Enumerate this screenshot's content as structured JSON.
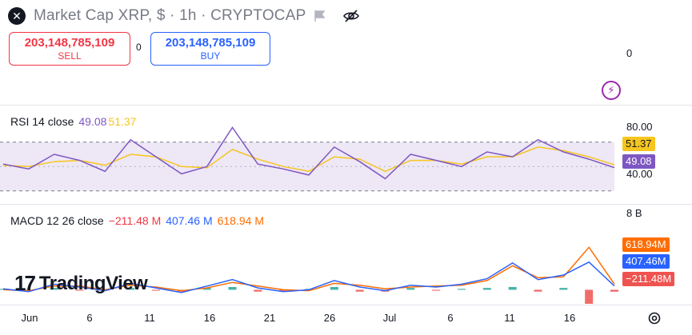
{
  "header": {
    "title": "Market Cap XRP, $ · 1h · CRYPTOCAP"
  },
  "trade": {
    "sell_price": "203,148,785,109",
    "sell_label": "SELL",
    "spread": "0",
    "buy_price": "203,148,785,109",
    "buy_label": "BUY"
  },
  "main_axis": {
    "zero": "0"
  },
  "rsi": {
    "name": "RSI 14 close",
    "value": "49.08",
    "ma_value": "51.37",
    "tick_high": "80.00",
    "tick_low": "40.00",
    "colors": {
      "rsi": "#7e57c2",
      "ma": "#f7c51e",
      "band": "#ede7f6"
    }
  },
  "macd": {
    "name": "MACD 12 26 close",
    "hist_value": "−211.48 M",
    "macd_value": "407.46 M",
    "signal_value": "618.94 M",
    "tick_top": "8 B",
    "tag_signal": "618.94M",
    "tag_macd": "407.46M",
    "tag_hist": "−211.48M",
    "colors": {
      "macd": "#2962ff",
      "signal": "#ff6d00",
      "hist_pos": "#26a69a",
      "hist_neg": "#ef5350"
    }
  },
  "xaxis": {
    "labels": [
      "Jun",
      "6",
      "11",
      "16",
      "21",
      "26",
      "Jul",
      "6",
      "11",
      "16"
    ]
  },
  "watermark": "TradingView",
  "chart_data": [
    {
      "type": "line",
      "title": "RSI 14 close",
      "ylim": [
        20,
        100
      ],
      "bands": [
        30,
        70
      ],
      "x": [
        "Jun 1",
        "Jun 3",
        "Jun 5",
        "Jun 7",
        "Jun 9",
        "Jun 11",
        "Jun 13",
        "Jun 15",
        "Jun 17",
        "Jun 19",
        "Jun 21",
        "Jun 23",
        "Jun 25",
        "Jun 27",
        "Jun 29",
        "Jul 1",
        "Jul 3",
        "Jul 5",
        "Jul 7",
        "Jul 9",
        "Jul 11",
        "Jul 13",
        "Jul 15",
        "Jul 17",
        "Jul 19"
      ],
      "series": [
        {
          "name": "RSI",
          "values": [
            52,
            48,
            60,
            55,
            46,
            72,
            58,
            44,
            50,
            82,
            52,
            48,
            43,
            66,
            54,
            40,
            60,
            55,
            50,
            62,
            58,
            72,
            62,
            56,
            49.08
          ]
        },
        {
          "name": "MA",
          "values": [
            51,
            50,
            54,
            55,
            51,
            60,
            58,
            50,
            49,
            64,
            56,
            50,
            46,
            58,
            56,
            46,
            55,
            55,
            52,
            58,
            58,
            66,
            63,
            58,
            51.37
          ]
        }
      ]
    },
    {
      "type": "line",
      "title": "MACD 12 26 close",
      "ylim": [
        -1,
        8
      ],
      "y_unit": "B",
      "x": [
        "Jun 1",
        "Jun 3",
        "Jun 5",
        "Jun 7",
        "Jun 9",
        "Jun 11",
        "Jun 13",
        "Jun 15",
        "Jun 17",
        "Jun 19",
        "Jun 21",
        "Jun 23",
        "Jun 25",
        "Jun 27",
        "Jun 29",
        "Jul 1",
        "Jul 3",
        "Jul 5",
        "Jul 7",
        "Jul 9",
        "Jul 11",
        "Jul 13",
        "Jul 15",
        "Jul 17",
        "Jul 19"
      ],
      "series": [
        {
          "name": "MACD",
          "values": [
            0.1,
            -0.2,
            0.6,
            0.3,
            -0.1,
            0.7,
            0.2,
            -0.3,
            0.4,
            1.1,
            0.2,
            -0.2,
            0.0,
            1.0,
            0.3,
            -0.1,
            0.5,
            0.3,
            0.6,
            1.2,
            2.9,
            1.1,
            1.6,
            3.0,
            0.41
          ]
        },
        {
          "name": "Signal",
          "values": [
            0.0,
            -0.1,
            0.4,
            0.4,
            0.0,
            0.5,
            0.3,
            -0.1,
            0.2,
            0.8,
            0.4,
            0.0,
            -0.1,
            0.7,
            0.5,
            0.1,
            0.3,
            0.4,
            0.5,
            1.0,
            2.6,
            1.3,
            1.4,
            4.6,
            0.62
          ]
        },
        {
          "name": "Histogram",
          "values": [
            0.1,
            -0.1,
            0.2,
            -0.1,
            -0.1,
            0.2,
            -0.1,
            -0.2,
            0.2,
            0.3,
            -0.2,
            -0.2,
            0.1,
            0.3,
            -0.2,
            -0.2,
            0.2,
            -0.1,
            0.1,
            0.2,
            0.3,
            -0.2,
            0.2,
            -1.6,
            -0.21
          ]
        }
      ]
    }
  ]
}
